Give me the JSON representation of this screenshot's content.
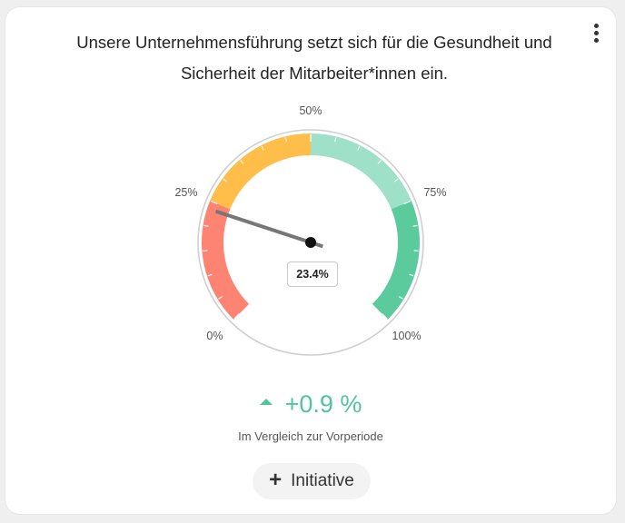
{
  "card": {
    "title": "Unsere Unternehmensführung setzt sich für die Gesundheit und Sicherheit der Mitarbeiter*innen ein.",
    "menu_icon": "more-vertical-icon"
  },
  "gauge": {
    "value_percent": 23.4,
    "value_label": "23.4%",
    "range": [
      0,
      100
    ],
    "tick_labels": [
      "0%",
      "25%",
      "50%",
      "75%",
      "100%"
    ],
    "segments": [
      {
        "from": 0,
        "to": 25,
        "color": "#fd8373"
      },
      {
        "from": 25,
        "to": 50,
        "color": "#ffbd4a"
      },
      {
        "from": 50,
        "to": 75,
        "color": "#9fe0c8"
      },
      {
        "from": 75,
        "to": 100,
        "color": "#5bcb9e"
      }
    ],
    "needle_color": "#777777"
  },
  "delta": {
    "text": "+0.9 %",
    "direction_icon": "triangle-up-icon",
    "color": "#52c49a",
    "caption": "Im Vergleich zur Vorperiode"
  },
  "action": {
    "icon": "plus-icon",
    "label": "Initiative"
  }
}
